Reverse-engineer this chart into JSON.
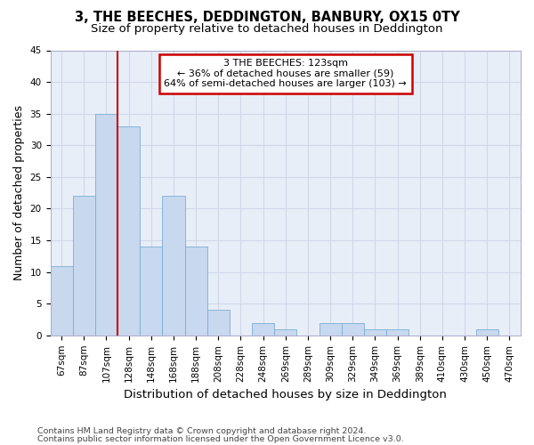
{
  "title": "3, THE BEECHES, DEDDINGTON, BANBURY, OX15 0TY",
  "subtitle": "Size of property relative to detached houses in Deddington",
  "xlabel": "Distribution of detached houses by size in Deddington",
  "ylabel": "Number of detached properties",
  "categories": [
    "67sqm",
    "87sqm",
    "107sqm",
    "128sqm",
    "148sqm",
    "168sqm",
    "188sqm",
    "208sqm",
    "228sqm",
    "248sqm",
    "269sqm",
    "289sqm",
    "309sqm",
    "329sqm",
    "349sqm",
    "369sqm",
    "389sqm",
    "410sqm",
    "430sqm",
    "450sqm",
    "470sqm"
  ],
  "values": [
    11,
    22,
    35,
    33,
    14,
    22,
    14,
    4,
    0,
    2,
    1,
    0,
    2,
    2,
    1,
    1,
    0,
    0,
    0,
    1,
    0
  ],
  "bar_color": "#c8d8ee",
  "bar_edge_color": "#7aaed4",
  "annotation_text1": "3 THE BEECHES: 123sqm",
  "annotation_text2": "← 36% of detached houses are smaller (59)",
  "annotation_text3": "64% of semi-detached houses are larger (103) →",
  "annotation_box_color": "#ffffff",
  "annotation_box_edge": "#cc0000",
  "red_line_color": "#cc0000",
  "ylim": [
    0,
    45
  ],
  "yticks": [
    0,
    5,
    10,
    15,
    20,
    25,
    30,
    35,
    40,
    45
  ],
  "grid_color": "#d0d8e8",
  "bg_color": "#e8eef8",
  "footer1": "Contains HM Land Registry data © Crown copyright and database right 2024.",
  "footer2": "Contains public sector information licensed under the Open Government Licence v3.0.",
  "title_fontsize": 10.5,
  "subtitle_fontsize": 9.5,
  "axis_label_fontsize": 9,
  "tick_fontsize": 7.5,
  "annotation_fontsize": 8,
  "footer_fontsize": 6.8
}
